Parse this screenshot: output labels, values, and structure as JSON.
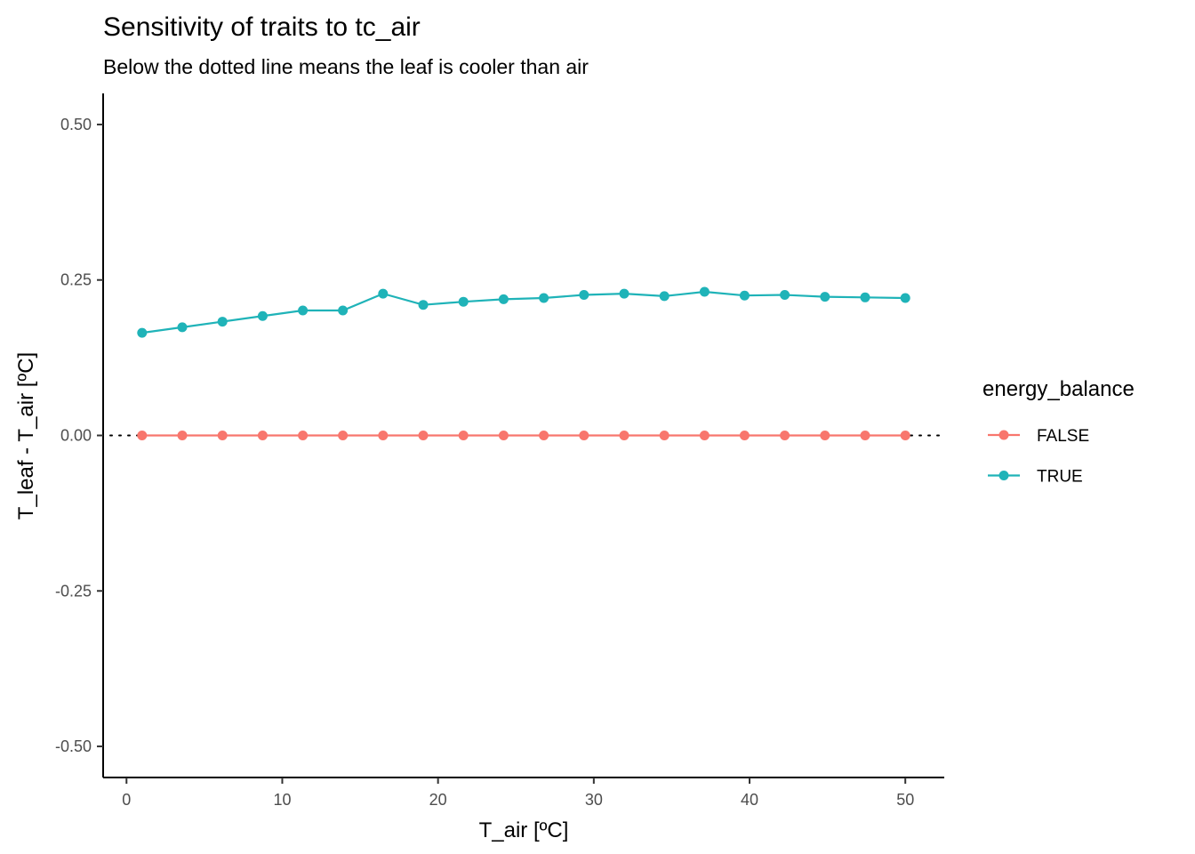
{
  "chart_data": {
    "type": "line",
    "title": "Sensitivity of traits to tc_air",
    "subtitle": "Below the dotted line means the leaf is cooler than air",
    "xlabel": "T_air [ºC]",
    "ylabel": "T_leaf - T_air [ºC]",
    "xlim": [
      -1.5,
      52.5
    ],
    "ylim": [
      -0.55,
      0.55
    ],
    "x_ticks": [
      0,
      10,
      20,
      30,
      40,
      50
    ],
    "x_tick_labels": [
      "0",
      "10",
      "20",
      "30",
      "40",
      "50"
    ],
    "y_ticks": [
      0.5,
      0.25,
      0.0,
      -0.25,
      -0.5
    ],
    "y_tick_labels": [
      "0.50",
      "0.25",
      "0.00",
      "-0.25",
      "-0.50"
    ],
    "reference_line": {
      "y": 0,
      "style": "dotted"
    },
    "grid": false,
    "legend": {
      "title": "energy_balance",
      "position": "right"
    },
    "x": [
      1.0,
      3.58,
      6.16,
      8.74,
      11.32,
      13.89,
      16.47,
      19.05,
      21.63,
      24.21,
      26.79,
      29.37,
      31.95,
      34.53,
      37.11,
      39.68,
      42.26,
      44.84,
      47.42,
      50.0
    ],
    "series": [
      {
        "name": "FALSE",
        "color": "#F8766D",
        "values": [
          0,
          0,
          0,
          0,
          0,
          0,
          0,
          0,
          0,
          0,
          0,
          0,
          0,
          0,
          0,
          0,
          0,
          0,
          0,
          0
        ]
      },
      {
        "name": "TRUE",
        "color": "#1FB3B8",
        "values": [
          0.165,
          0.174,
          0.183,
          0.192,
          0.201,
          0.201,
          0.228,
          0.21,
          0.215,
          0.219,
          0.221,
          0.226,
          0.228,
          0.224,
          0.231,
          0.225,
          0.226,
          0.223,
          0.222,
          0.221
        ]
      }
    ]
  }
}
